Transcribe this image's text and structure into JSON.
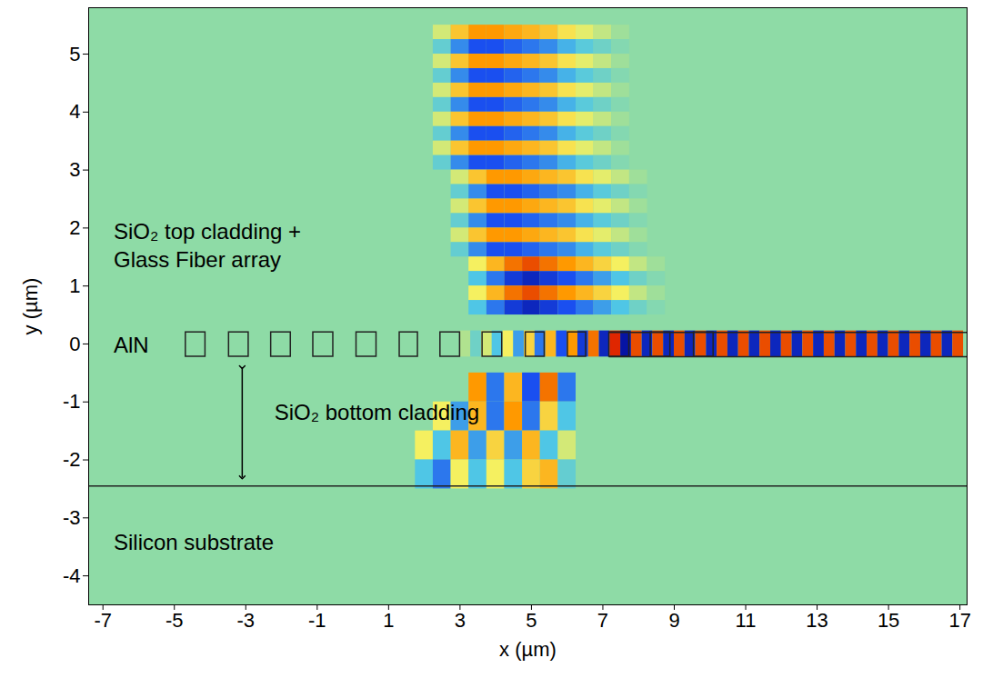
{
  "chart_data": {
    "type": "heatmap",
    "x_label": "x (µm)",
    "y_label": "y (µm)",
    "xlim": [
      -7.4,
      17.2
    ],
    "ylim": [
      -4.5,
      5.8
    ],
    "xticks": [
      -7,
      -5,
      -3,
      -1,
      1,
      3,
      5,
      7,
      9,
      11,
      13,
      15,
      17
    ],
    "yticks": [
      -4,
      -3,
      -2,
      -1,
      0,
      1,
      2,
      3,
      4,
      5
    ],
    "color_range": [
      -1,
      1
    ],
    "field": [
      {
        "dx": 0.5,
        "dy": 0.25,
        "rows": [
          {
            "y": 5.375,
            "x0": 2.5,
            "values": [
              0.2,
              0.45,
              0.6,
              0.6,
              0.55,
              0.5,
              0.45,
              0.35,
              0.25,
              0.15,
              0.05
            ]
          },
          {
            "y": 5.125,
            "x0": 2.5,
            "values": [
              -0.2,
              -0.45,
              -0.6,
              -0.6,
              -0.55,
              -0.5,
              -0.45,
              -0.35,
              -0.25,
              -0.15,
              -0.05
            ]
          },
          {
            "y": 4.875,
            "x0": 2.5,
            "values": [
              0.2,
              0.45,
              0.6,
              0.6,
              0.55,
              0.5,
              0.45,
              0.35,
              0.25,
              0.15,
              0.05
            ]
          },
          {
            "y": 4.625,
            "x0": 2.5,
            "values": [
              -0.2,
              -0.45,
              -0.6,
              -0.6,
              -0.55,
              -0.5,
              -0.45,
              -0.35,
              -0.25,
              -0.15,
              -0.05
            ]
          },
          {
            "y": 4.375,
            "x0": 2.5,
            "values": [
              0.2,
              0.45,
              0.6,
              0.6,
              0.55,
              0.5,
              0.45,
              0.35,
              0.25,
              0.15,
              0.05
            ]
          },
          {
            "y": 4.125,
            "x0": 2.5,
            "values": [
              -0.2,
              -0.45,
              -0.6,
              -0.6,
              -0.55,
              -0.5,
              -0.45,
              -0.35,
              -0.25,
              -0.15,
              -0.05
            ]
          },
          {
            "y": 3.875,
            "x0": 2.5,
            "values": [
              0.2,
              0.45,
              0.6,
              0.6,
              0.55,
              0.5,
              0.45,
              0.35,
              0.25,
              0.15,
              0.05
            ]
          },
          {
            "y": 3.625,
            "x0": 2.5,
            "values": [
              -0.2,
              -0.45,
              -0.6,
              -0.6,
              -0.55,
              -0.5,
              -0.45,
              -0.35,
              -0.25,
              -0.15,
              -0.05
            ]
          },
          {
            "y": 3.375,
            "x0": 2.5,
            "values": [
              0.2,
              0.45,
              0.6,
              0.6,
              0.55,
              0.5,
              0.45,
              0.35,
              0.25,
              0.15,
              0.05
            ]
          },
          {
            "y": 3.125,
            "x0": 2.5,
            "values": [
              -0.2,
              -0.45,
              -0.6,
              -0.6,
              -0.55,
              -0.5,
              -0.45,
              -0.35,
              -0.25,
              -0.15,
              -0.05
            ]
          },
          {
            "y": 2.875,
            "x0": 3.0,
            "values": [
              0.2,
              0.45,
              0.6,
              0.6,
              0.55,
              0.5,
              0.45,
              0.35,
              0.25,
              0.15,
              0.05
            ]
          },
          {
            "y": 2.625,
            "x0": 3.0,
            "values": [
              -0.2,
              -0.45,
              -0.6,
              -0.6,
              -0.55,
              -0.5,
              -0.45,
              -0.35,
              -0.25,
              -0.15,
              -0.05
            ]
          },
          {
            "y": 2.375,
            "x0": 3.0,
            "values": [
              0.2,
              0.45,
              0.6,
              0.6,
              0.55,
              0.5,
              0.45,
              0.35,
              0.25,
              0.15,
              0.05
            ]
          },
          {
            "y": 2.125,
            "x0": 3.0,
            "values": [
              -0.2,
              -0.45,
              -0.6,
              -0.6,
              -0.55,
              -0.5,
              -0.45,
              -0.35,
              -0.25,
              -0.15,
              -0.05
            ]
          },
          {
            "y": 1.875,
            "x0": 3.0,
            "values": [
              0.2,
              0.45,
              0.6,
              0.6,
              0.55,
              0.5,
              0.45,
              0.35,
              0.25,
              0.15,
              0.05
            ]
          },
          {
            "y": 1.625,
            "x0": 3.0,
            "values": [
              -0.2,
              -0.45,
              -0.6,
              -0.6,
              -0.55,
              -0.5,
              -0.45,
              -0.35,
              -0.25,
              -0.15,
              -0.05
            ]
          },
          {
            "y": 1.375,
            "x0": 3.5,
            "values": [
              0.3,
              0.5,
              0.7,
              0.8,
              0.7,
              0.6,
              0.5,
              0.4,
              0.3,
              0.15,
              0.05
            ]
          },
          {
            "y": 1.125,
            "x0": 3.5,
            "values": [
              -0.3,
              -0.5,
              -0.7,
              -0.8,
              -0.7,
              -0.6,
              -0.5,
              -0.4,
              -0.3,
              -0.15,
              -0.05
            ]
          },
          {
            "y": 0.875,
            "x0": 3.5,
            "values": [
              0.3,
              0.5,
              0.7,
              0.8,
              0.7,
              0.6,
              0.5,
              0.4,
              0.3,
              0.15,
              0.05
            ]
          },
          {
            "y": 0.625,
            "x0": 3.5,
            "values": [
              -0.3,
              -0.5,
              -0.7,
              -0.8,
              -0.7,
              -0.6,
              -0.5,
              -0.4,
              -0.3,
              -0.15,
              -0.05
            ]
          }
        ]
      },
      {
        "dx": 0.5,
        "dy": 0.5,
        "rows": [
          {
            "y": -0.75,
            "x0": 3.5,
            "values": [
              0.6,
              -0.5,
              0.5,
              -0.6,
              0.7,
              -0.5
            ]
          },
          {
            "y": -1.25,
            "x0": 2.5,
            "values": [
              0.3,
              -0.4,
              0.5,
              -0.5,
              0.6,
              -0.5,
              0.4,
              -0.3
            ]
          },
          {
            "y": -1.75,
            "x0": 2.0,
            "values": [
              0.3,
              -0.3,
              0.5,
              -0.4,
              0.4,
              -0.4,
              0.5,
              -0.3,
              0.2
            ]
          },
          {
            "y": -2.25,
            "x0": 2.0,
            "values": [
              -0.3,
              -0.5,
              0.3,
              -0.3,
              0.3,
              -0.3,
              0.4,
              0.5,
              -0.2
            ]
          }
        ]
      },
      {
        "dx": 0.3,
        "dy": 0.45,
        "rows": [
          {
            "y": 0,
            "x0": 3.15,
            "values": [
              0.1,
              -0.15,
              0.2,
              -0.3,
              0.3,
              -0.4,
              0.4,
              -0.5,
              0.5,
              -0.6,
              0.6,
              -0.7,
              0.7,
              -0.8,
              0.9,
              -0.9,
              0.8,
              -0.8,
              0.8,
              -0.8,
              0.8,
              -0.8,
              0.8,
              -0.8,
              0.8,
              -0.8,
              0.8,
              -0.8,
              0.8,
              -0.8,
              0.8,
              -0.8,
              0.8,
              -0.8,
              0.8,
              -0.8,
              0.8,
              -0.8,
              0.8,
              -0.8,
              0.8,
              -0.8,
              0.8,
              -0.8,
              0.8,
              -0.8,
              0.8
            ]
          }
        ]
      }
    ],
    "structure": {
      "teeth": [
        [
          -4.68,
          -4.13
        ],
        [
          -3.47,
          -2.92
        ],
        [
          -2.29,
          -1.74
        ],
        [
          -1.11,
          -0.55
        ],
        [
          0.1,
          0.66
        ],
        [
          1.31,
          1.82
        ],
        [
          2.45,
          3.0
        ],
        [
          3.63,
          4.18
        ],
        [
          4.84,
          5.37
        ],
        [
          6.02,
          6.53
        ],
        [
          7.18,
          7.74
        ],
        [
          8.34,
          8.89
        ],
        [
          9.55,
          10.1
        ]
      ],
      "core": [
        -0.22,
        0.2
      ],
      "waveguide": [
        7.18,
        17.2
      ],
      "substrate_top": -2.45
    },
    "annotations": [
      {
        "text": "SiO₂ top cladding +\nGlass Fiber array",
        "x": -6.7,
        "y": 1.72
      },
      {
        "text": "AlN",
        "x": -6.7,
        "y": 0
      },
      {
        "text": "SiO₂ bottom cladding",
        "x": -2.2,
        "y": -1.15
      },
      {
        "text": "Silicon substrate",
        "x": -6.7,
        "y": -3.4
      }
    ],
    "arrows": [
      {
        "x": -3.1,
        "y": [
          -0.4,
          -2.3
        ]
      }
    ]
  }
}
